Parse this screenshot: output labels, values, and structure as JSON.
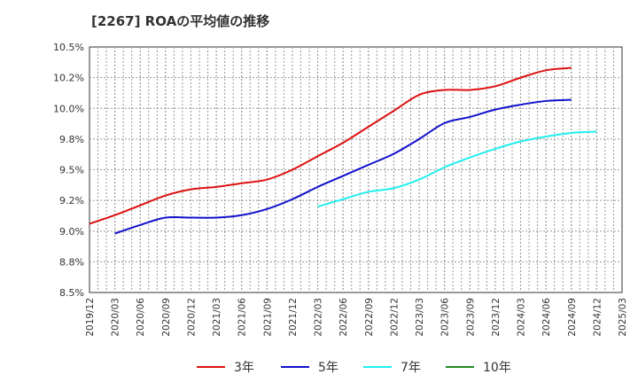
{
  "chart_data": {
    "type": "line",
    "title": "[2267]  ROAの平均値の推移",
    "xlabel": "",
    "ylabel": "",
    "ylim": [
      8.5,
      10.5
    ],
    "y_ticks": [
      "8.5%",
      "8.8%",
      "9.0%",
      "9.2%",
      "9.5%",
      "9.8%",
      "10.0%",
      "10.2%",
      "10.5%"
    ],
    "y_tick_values": [
      8.5,
      8.75,
      9.0,
      9.25,
      9.5,
      9.75,
      10.0,
      10.25,
      10.5
    ],
    "x_ticks": [
      "2019/12",
      "2020/03",
      "2020/06",
      "2020/09",
      "2020/12",
      "2021/03",
      "2021/06",
      "2021/09",
      "2021/12",
      "2022/03",
      "2022/06",
      "2022/09",
      "2022/12",
      "2023/03",
      "2023/06",
      "2023/09",
      "2023/12",
      "2024/03",
      "2024/06",
      "2024/09",
      "2024/12",
      "2025/03"
    ],
    "grid": true,
    "legend_position": "bottom",
    "series": [
      {
        "name": "3年",
        "color": "#dd1111",
        "start_index": 0,
        "values": [
          9.06,
          9.13,
          9.21,
          9.29,
          9.34,
          9.36,
          9.39,
          9.42,
          9.5,
          9.61,
          9.72,
          9.85,
          9.98,
          10.11,
          10.15,
          10.15,
          10.18,
          10.25,
          10.31,
          10.33
        ]
      },
      {
        "name": "5年",
        "color": "#1111cc",
        "start_index": 1,
        "values": [
          8.98,
          9.05,
          9.11,
          9.11,
          9.11,
          9.13,
          9.18,
          9.26,
          9.36,
          9.45,
          9.54,
          9.63,
          9.75,
          9.88,
          9.93,
          9.99,
          10.03,
          10.06,
          10.07
        ]
      },
      {
        "name": "7年",
        "color": "#22eeee",
        "start_index": 9,
        "values": [
          9.2,
          9.26,
          9.32,
          9.35,
          9.42,
          9.52,
          9.6,
          9.67,
          9.73,
          9.77,
          9.8,
          9.81
        ]
      },
      {
        "name": "10年",
        "color": "#228822",
        "start_index": 0,
        "values": []
      }
    ]
  }
}
